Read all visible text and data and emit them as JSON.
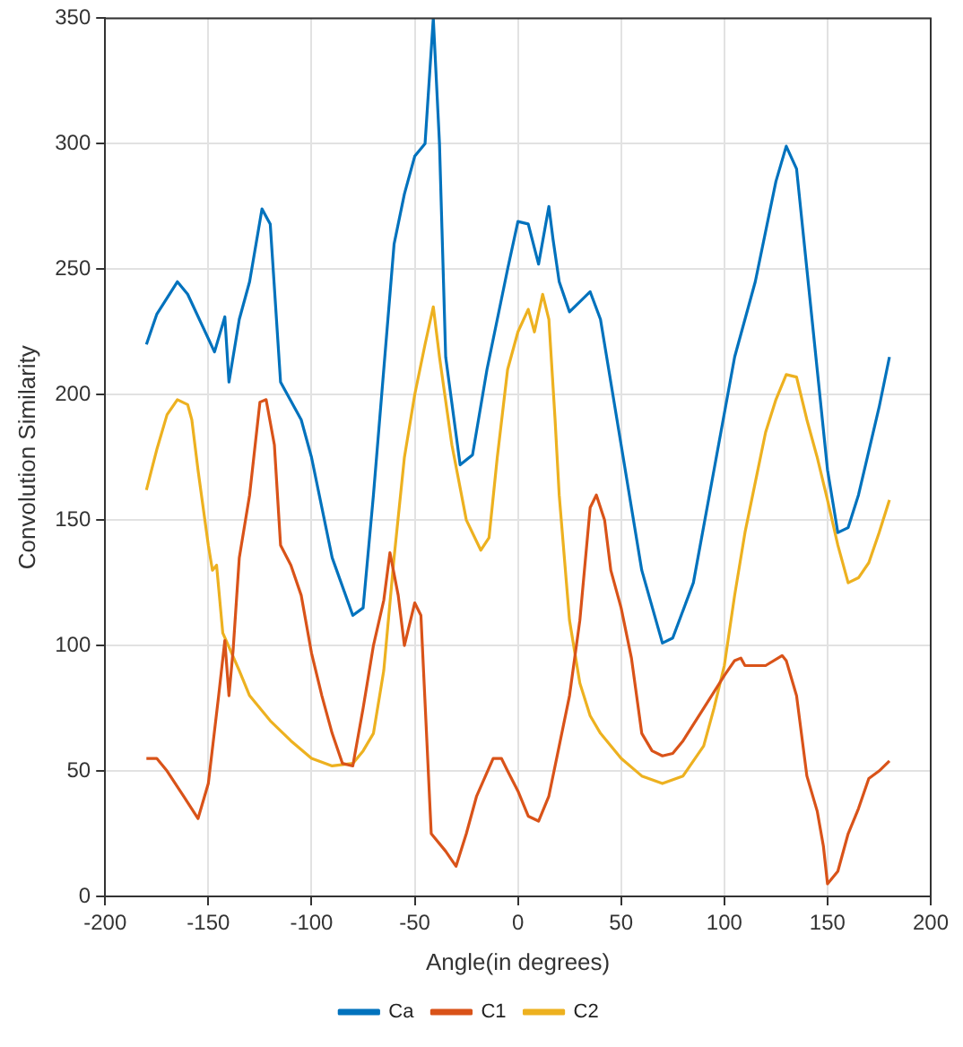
{
  "chart_data": {
    "type": "line",
    "xlabel": "Angle(in degrees)",
    "ylabel": "Convolution Similarity",
    "xlim": [
      -200,
      200
    ],
    "xticks": [
      -200,
      -150,
      -100,
      -50,
      0,
      50,
      100,
      150,
      200
    ],
    "ylim": [
      0,
      350
    ],
    "yticks": [
      0,
      50,
      100,
      150,
      200,
      250,
      300,
      350
    ],
    "grid": true,
    "legend": "bottom",
    "marker": "none",
    "line_style": "solid",
    "series": [
      {
        "name": "Ca",
        "color": "#0072bd",
        "x": [
          -180,
          -175,
          -165,
          -160,
          -147,
          -142,
          -140,
          -135,
          -130,
          -124,
          -120,
          -115,
          -105,
          -100,
          -90,
          -80,
          -75,
          -70,
          -60,
          -55,
          -50,
          -45,
          -41,
          -38,
          -35,
          -28,
          -22,
          -15,
          -5,
          0,
          5,
          10,
          15,
          17,
          20,
          25,
          35,
          40,
          50,
          60,
          70,
          75,
          85,
          95,
          105,
          115,
          125,
          130,
          135,
          140,
          145,
          150,
          155,
          160,
          165,
          175,
          180
        ],
        "values": [
          220,
          232,
          245,
          240,
          217,
          231,
          205,
          230,
          245,
          274,
          268,
          205,
          190,
          175,
          135,
          112,
          115,
          160,
          260,
          280,
          295,
          300,
          350,
          300,
          215,
          172,
          176,
          210,
          250,
          269,
          268,
          252,
          275,
          262,
          245,
          233,
          241,
          230,
          180,
          130,
          101,
          103,
          125,
          170,
          215,
          245,
          285,
          299,
          290,
          250,
          210,
          170,
          145,
          147,
          160,
          195,
          215
        ]
      },
      {
        "name": "C1",
        "color": "#d95319",
        "x": [
          -180,
          -175,
          -170,
          -162,
          -155,
          -150,
          -145,
          -142,
          -140,
          -138,
          -135,
          -130,
          -125,
          -122,
          -118,
          -115,
          -110,
          -105,
          -100,
          -95,
          -90,
          -85,
          -80,
          -75,
          -70,
          -65,
          -62,
          -58,
          -55,
          -50,
          -47,
          -44,
          -42,
          -35,
          -30,
          -25,
          -20,
          -12,
          -8,
          -5,
          0,
          5,
          10,
          15,
          20,
          25,
          30,
          35,
          38,
          42,
          45,
          50,
          55,
          60,
          65,
          70,
          75,
          80,
          90,
          100,
          105,
          108,
          110,
          120,
          128,
          130,
          135,
          140,
          145,
          148,
          150,
          155,
          160,
          165,
          170,
          175,
          180
        ],
        "values": [
          55,
          55,
          50,
          40,
          31,
          45,
          80,
          102,
          80,
          98,
          135,
          160,
          197,
          198,
          180,
          140,
          132,
          120,
          97,
          80,
          65,
          53,
          52,
          75,
          100,
          118,
          137,
          120,
          100,
          117,
          112,
          60,
          25,
          18,
          12,
          25,
          40,
          55,
          55,
          50,
          42,
          32,
          30,
          40,
          60,
          80,
          110,
          155,
          160,
          150,
          130,
          115,
          95,
          65,
          58,
          56,
          57,
          62,
          75,
          88,
          94,
          95,
          92,
          92,
          96,
          94,
          80,
          48,
          34,
          20,
          5,
          10,
          25,
          35,
          47,
          50,
          54
        ]
      },
      {
        "name": "C2",
        "color": "#edb120",
        "x": [
          -180,
          -175,
          -170,
          -165,
          -160,
          -158,
          -155,
          -150,
          -148,
          -146,
          -143,
          -135,
          -130,
          -120,
          -110,
          -100,
          -90,
          -80,
          -75,
          -70,
          -65,
          -60,
          -55,
          -50,
          -45,
          -41,
          -38,
          -32,
          -25,
          -18,
          -14,
          -10,
          -5,
          0,
          5,
          8,
          12,
          15,
          18,
          20,
          25,
          30,
          35,
          40,
          50,
          60,
          70,
          80,
          90,
          95,
          100,
          105,
          110,
          115,
          120,
          125,
          130,
          135,
          140,
          145,
          150,
          155,
          160,
          165,
          170,
          175,
          180
        ],
        "values": [
          162,
          178,
          192,
          198,
          196,
          190,
          170,
          140,
          130,
          132,
          105,
          90,
          80,
          70,
          62,
          55,
          52,
          53,
          58,
          65,
          90,
          135,
          175,
          200,
          220,
          235,
          215,
          180,
          150,
          138,
          143,
          175,
          210,
          225,
          234,
          225,
          240,
          230,
          190,
          160,
          110,
          85,
          72,
          65,
          55,
          48,
          45,
          48,
          60,
          75,
          92,
          120,
          145,
          165,
          185,
          198,
          208,
          207,
          190,
          175,
          158,
          140,
          125,
          127,
          133,
          145,
          158
        ]
      }
    ]
  }
}
